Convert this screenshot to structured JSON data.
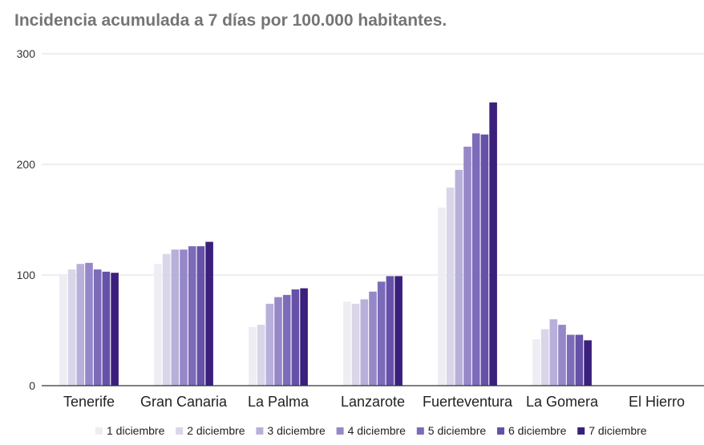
{
  "chart_data": {
    "type": "bar",
    "title": "Incidencia acumulada a 7 días por 100.000 habitantes.",
    "categories": [
      "Tenerife",
      "Gran Canaria",
      "La Palma",
      "Lanzarote",
      "Fuerteventura",
      "La Gomera",
      "El Hierro"
    ],
    "series": [
      {
        "name": "1 diciembre",
        "values": [
          100,
          110,
          53,
          76,
          161,
          42,
          0
        ],
        "color": "#eeedf3"
      },
      {
        "name": "2 diciembre",
        "values": [
          105,
          119,
          55,
          74,
          179,
          51,
          0
        ],
        "color": "#d9d6e9"
      },
      {
        "name": "3 diciembre",
        "values": [
          110,
          123,
          74,
          78,
          195,
          60,
          0
        ],
        "color": "#b8b0da"
      },
      {
        "name": "4 diciembre",
        "values": [
          111,
          123,
          80,
          85,
          216,
          55,
          0
        ],
        "color": "#9688c8"
      },
      {
        "name": "5 diciembre",
        "values": [
          105,
          126,
          82,
          94,
          228,
          46,
          0
        ],
        "color": "#7c6bb9"
      },
      {
        "name": "6 diciembre",
        "values": [
          103,
          126,
          87,
          99,
          227,
          46,
          0
        ],
        "color": "#6651a8"
      },
      {
        "name": "7 diciembre",
        "values": [
          102,
          130,
          88,
          99,
          256,
          41,
          0
        ],
        "color": "#3b1f7c"
      }
    ],
    "yticks": [
      "0",
      "100",
      "200",
      "300"
    ],
    "ylim": [
      0,
      300
    ],
    "grid": true,
    "legend_position": "bottom"
  }
}
